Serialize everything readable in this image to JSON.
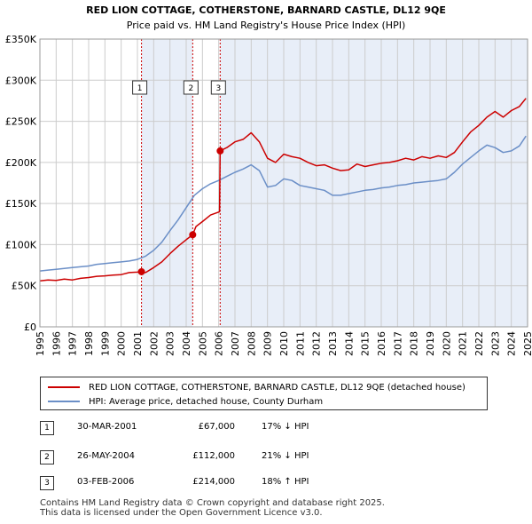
{
  "chart_data": {
    "type": "line",
    "title": "RED LION COTTAGE, COTHERSTONE, BARNARD CASTLE, DL12 9QE",
    "subtitle": "Price paid vs. HM Land Registry's House Price Index (HPI)",
    "xlabel": "",
    "ylabel": "",
    "xlim": [
      1995,
      2025
    ],
    "ylim": [
      0,
      350000
    ],
    "y_ticks": [
      {
        "value": 0,
        "label": "£0"
      },
      {
        "value": 50000,
        "label": "£50K"
      },
      {
        "value": 100000,
        "label": "£100K"
      },
      {
        "value": 150000,
        "label": "£150K"
      },
      {
        "value": 200000,
        "label": "£200K"
      },
      {
        "value": 250000,
        "label": "£250K"
      },
      {
        "value": 300000,
        "label": "£300K"
      },
      {
        "value": 350000,
        "label": "£350K"
      }
    ],
    "x_ticks": [
      "1995",
      "1996",
      "1997",
      "1998",
      "1999",
      "2000",
      "2001",
      "2002",
      "2003",
      "2004",
      "2005",
      "2006",
      "2007",
      "2008",
      "2009",
      "2010",
      "2011",
      "2012",
      "2013",
      "2014",
      "2015",
      "2016",
      "2017",
      "2018",
      "2019",
      "2020",
      "2021",
      "2022",
      "2023",
      "2024",
      "2025"
    ],
    "grid": true,
    "shaded_ranges": [
      [
        2001.25,
        2004.4
      ],
      [
        2006.09,
        2025.0
      ]
    ],
    "series": [
      {
        "name": "RED LION COTTAGE, COTHERSTONE, BARNARD CASTLE, DL12 9QE (detached house)",
        "color": "#cc0000",
        "x": [
          1995,
          1995.5,
          1996,
          1996.5,
          1997,
          1997.5,
          1998,
          1998.5,
          1999,
          1999.5,
          2000,
          2000.5,
          2001,
          2001.25,
          2001.5,
          2002,
          2002.5,
          2003,
          2003.5,
          2004,
          2004.4,
          2004.6,
          2005,
          2005.5,
          2006.05,
          2006.09,
          2006.5,
          2007,
          2007.5,
          2008,
          2008.5,
          2009,
          2009.5,
          2010,
          2010.5,
          2011,
          2011.5,
          2012,
          2012.5,
          2013,
          2013.5,
          2014,
          2014.5,
          2015,
          2015.5,
          2016,
          2016.5,
          2017,
          2017.5,
          2018,
          2018.5,
          2019,
          2019.5,
          2020,
          2020.5,
          2021,
          2021.5,
          2022,
          2022.5,
          2023,
          2023.5,
          2024,
          2024.5,
          2024.9
        ],
        "y": [
          56000,
          57000,
          56500,
          58000,
          57000,
          59000,
          60000,
          61500,
          62000,
          63000,
          63500,
          66000,
          66500,
          67000,
          66000,
          72000,
          79000,
          89000,
          98000,
          106000,
          112000,
          122000,
          128000,
          136000,
          140000,
          214000,
          218000,
          225000,
          228000,
          236000,
          225000,
          205000,
          200000,
          210000,
          207000,
          205000,
          200000,
          196000,
          197000,
          193000,
          190000,
          191000,
          198000,
          195000,
          197000,
          199000,
          200000,
          202000,
          205000,
          203000,
          207000,
          205000,
          208000,
          206000,
          212000,
          225000,
          237000,
          245000,
          255000,
          262000,
          255000,
          263000,
          268000,
          278000
        ]
      },
      {
        "name": "HPI: Average price, detached house, County Durham",
        "color": "#6b8fc7",
        "x": [
          1995,
          1995.5,
          1996,
          1996.5,
          1997,
          1997.5,
          1998,
          1998.5,
          1999,
          1999.5,
          2000,
          2000.5,
          2001,
          2001.5,
          2002,
          2002.5,
          2003,
          2003.5,
          2004,
          2004.5,
          2005,
          2005.5,
          2006,
          2006.5,
          2007,
          2007.5,
          2008,
          2008.5,
          2009,
          2009.5,
          2010,
          2010.5,
          2011,
          2011.5,
          2012,
          2012.5,
          2013,
          2013.5,
          2014,
          2014.5,
          2015,
          2015.5,
          2016,
          2016.5,
          2017,
          2017.5,
          2018,
          2018.5,
          2019,
          2019.5,
          2020,
          2020.5,
          2021,
          2021.5,
          2022,
          2022.5,
          2023,
          2023.5,
          2024,
          2024.5,
          2024.9
        ],
        "y": [
          68000,
          69000,
          70000,
          71000,
          72000,
          73000,
          74000,
          76000,
          77000,
          78000,
          79000,
          80000,
          82000,
          86000,
          93000,
          103000,
          117000,
          130000,
          145000,
          160000,
          168000,
          174000,
          178000,
          183000,
          188000,
          192000,
          197000,
          190000,
          170000,
          172000,
          180000,
          178000,
          172000,
          170000,
          168000,
          166000,
          160000,
          160000,
          162000,
          164000,
          166000,
          167000,
          169000,
          170000,
          172000,
          173000,
          175000,
          176000,
          177000,
          178000,
          180000,
          188000,
          198000,
          206000,
          214000,
          221000,
          218000,
          212000,
          214000,
          220000,
          232000
        ]
      }
    ],
    "markers": [
      {
        "label": "1",
        "x": 2001.25,
        "y": 67000
      },
      {
        "label": "2",
        "x": 2004.4,
        "y": 112000
      },
      {
        "label": "3",
        "x": 2006.09,
        "y": 214000
      }
    ]
  },
  "legend": {
    "items": [
      {
        "label": "RED LION COTTAGE, COTHERSTONE, BARNARD CASTLE, DL12 9QE (detached house)",
        "color": "#cc0000"
      },
      {
        "label": "HPI: Average price, detached house, County Durham",
        "color": "#6b8fc7"
      }
    ]
  },
  "sales": [
    {
      "num": "1",
      "date": "30-MAR-2001",
      "price": "£67,000",
      "hpi": "17% ↓ HPI"
    },
    {
      "num": "2",
      "date": "26-MAY-2004",
      "price": "£112,000",
      "hpi": "21% ↓ HPI"
    },
    {
      "num": "3",
      "date": "03-FEB-2006",
      "price": "£214,000",
      "hpi": "18% ↑ HPI"
    }
  ],
  "footer": {
    "line1": "Contains HM Land Registry data © Crown copyright and database right 2025.",
    "line2": "This data is licensed under the Open Government Licence v3.0."
  }
}
